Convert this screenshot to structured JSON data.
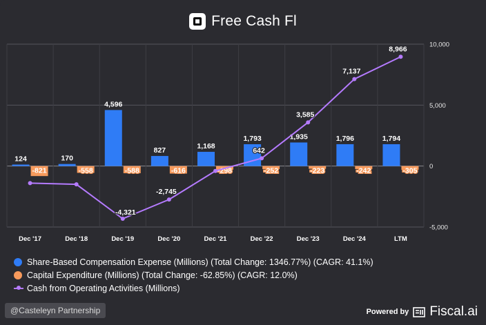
{
  "header": {
    "title": "Free Cash Fl",
    "logo_icon": "square-logo-icon"
  },
  "chart_data": {
    "type": "bar+line",
    "categories": [
      "Dec '17",
      "Dec '18",
      "Dec '19",
      "Dec '20",
      "Dec '21",
      "Dec '22",
      "Dec '23",
      "Dec '24",
      "LTM"
    ],
    "ylim": [
      -5000,
      10000
    ],
    "yticks": [
      10000,
      5000,
      0,
      -5000
    ],
    "ytick_labels": [
      "10,000",
      "5,000",
      "0",
      "-5,000"
    ],
    "series": [
      {
        "name": "Share-Based Compensation Expense (Millions)",
        "type": "bar",
        "color": "#2f7cf6",
        "values": [
          124,
          170,
          4596,
          827,
          1168,
          1793,
          1935,
          1796,
          1794
        ],
        "labels": [
          "124",
          "170",
          "4,596",
          "827",
          "1,168",
          "1,793",
          "1,935",
          "1,796",
          "1,794"
        ]
      },
      {
        "name": "Capital Expenditure (Millions)",
        "type": "bar",
        "color": "#f79a5c",
        "values": [
          -821,
          -558,
          -588,
          -616,
          -298,
          -252,
          -223,
          -242,
          -305
        ],
        "labels": [
          "-821",
          "-558",
          "-588",
          "-616",
          "-298",
          "-252",
          "-223",
          "-242",
          "-305"
        ]
      },
      {
        "name": "Cash from Operating Activities (Millions)",
        "type": "line",
        "color": "#b57bff",
        "values": [
          -1400,
          -1500,
          -4321,
          -2745,
          -400,
          642,
          3585,
          7137,
          8966
        ],
        "labels": [
          "",
          "",
          "-4,321",
          "-2,745",
          "",
          "642",
          "3,585",
          "7,137",
          "8,966"
        ]
      }
    ]
  },
  "legend": {
    "items": [
      {
        "label": "Share-Based Compensation Expense (Millions) (Total Change: 1346.77%) (CAGR: 41.1%)",
        "color": "#2f7cf6"
      },
      {
        "label": "Capital Expenditure (Millions) (Total Change: -62.85%) (CAGR: 12.0%)",
        "color": "#f79a5c"
      },
      {
        "label": "Cash from Operating Activities (Millions)",
        "color": "#b57bff"
      }
    ]
  },
  "footer": {
    "watermark": "@Casteleyn Partnership",
    "powered_by": "Powered by",
    "brand": "Fiscal.ai"
  }
}
